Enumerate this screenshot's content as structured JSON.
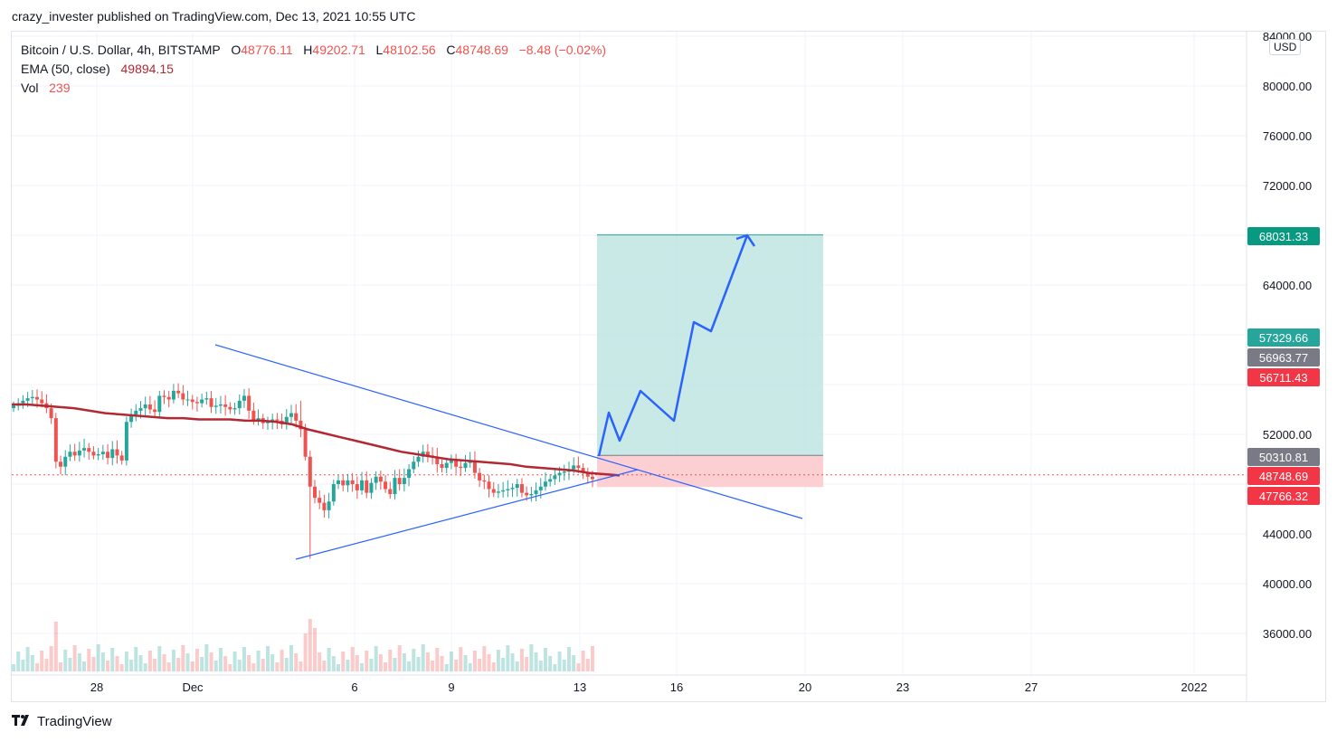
{
  "publisher": "crazy_invester published on TradingView.com, Dec 13, 2021 10:55 UTC",
  "legend": {
    "symbol": "Bitcoin / U.S. Dollar, 4h, BITSTAMP",
    "o_label": "O",
    "o": "48776.11",
    "h_label": "H",
    "h": "49202.71",
    "l_label": "L",
    "l": "48102.56",
    "c_label": "C",
    "c": "48748.69",
    "change": "−8.48 (−0.02%)",
    "ema_label": "EMA (50, close)",
    "ema": "49894.15",
    "vol_label": "Vol",
    "vol": "239"
  },
  "currency": "USD",
  "footer_brand": "TradingView",
  "colors": {
    "up": "#26a69a",
    "down": "#ef5350",
    "ema": "#b22833",
    "trendline": "#2962ff",
    "target_zone": "#b2dfdb",
    "stop_zone": "#fccbcd",
    "grid": "#f0f3fa",
    "text": "#131722"
  },
  "chart_data": {
    "type": "candlestick",
    "y_axis": {
      "ticks": [
        "84000.00",
        "80000.00",
        "76000.00",
        "72000.00",
        "64000.00",
        "52000.00",
        "44000.00",
        "40000.00",
        "36000.00"
      ],
      "ylim": [
        33000,
        85000
      ]
    },
    "x_axis": {
      "ticks": [
        "28",
        "Dec",
        "6",
        "9",
        "13",
        "16",
        "20",
        "23",
        "27",
        "2022"
      ]
    },
    "price_labels": [
      {
        "value": "68031.33",
        "kind": "target"
      },
      {
        "value": "57329.66",
        "kind": "up"
      },
      {
        "value": "56963.77",
        "kind": "neutral"
      },
      {
        "value": "56711.43",
        "kind": "down"
      },
      {
        "value": "50310.81",
        "kind": "entry"
      },
      {
        "value": "48748.69",
        "kind": "current"
      },
      {
        "value": "47766.32",
        "kind": "stop"
      }
    ],
    "last_price": 48748.69,
    "candles_close": [
      54300,
      54500,
      54700,
      54900,
      55000,
      54800,
      54500,
      54100,
      53300,
      49800,
      49400,
      50200,
      50600,
      50300,
      50700,
      50900,
      50600,
      50300,
      50400,
      50600,
      50100,
      50800,
      50300,
      49900,
      53000,
      53600,
      53900,
      54100,
      54400,
      54000,
      53800,
      55100,
      55000,
      54800,
      55500,
      55300,
      54800,
      54800,
      54600,
      54500,
      54800,
      54900,
      54200,
      54300,
      54400,
      54200,
      54000,
      54100,
      54700,
      55100,
      53900,
      53100,
      53300,
      52900,
      53000,
      53200,
      53100,
      52800,
      53400,
      53700,
      53100,
      52400,
      50200,
      47800,
      46900,
      46500,
      45900,
      46600,
      48000,
      48300,
      47900,
      48300,
      48000,
      47500,
      48300,
      47300,
      48100,
      48600,
      48200,
      47600,
      47200,
      48500,
      48000,
      48500,
      49200,
      49800,
      50200,
      50600,
      50300,
      50200,
      49600,
      49300,
      49700,
      49900,
      49400,
      49300,
      49700,
      49900,
      48900,
      48300,
      48200,
      47600,
      47300,
      47400,
      47500,
      47600,
      47700,
      48000,
      47300,
      47100,
      47200,
      47500,
      47800,
      48200,
      48400,
      48700,
      48900,
      49000,
      49200,
      49500,
      49300,
      48900,
      48600,
      48400
    ]
  },
  "ema_series": [
    54400,
    54400,
    54300,
    54200,
    54100,
    53900,
    53700,
    53600,
    53500,
    53400,
    53300,
    53300,
    53200,
    53200,
    53200,
    53100,
    53100,
    53000,
    52800,
    52400,
    52100,
    51800,
    51500,
    51200,
    50900,
    50600,
    50400,
    50200,
    50000,
    49900,
    49800,
    49700,
    49600,
    49400,
    49300,
    49200,
    49100,
    48900,
    48800,
    48700
  ],
  "projection_path": [
    [
      662,
      504
    ],
    [
      673,
      456
    ],
    [
      685,
      487
    ],
    [
      708,
      432
    ],
    [
      745,
      465
    ],
    [
      767,
      356
    ],
    [
      786,
      366
    ],
    [
      826,
      260
    ]
  ]
}
